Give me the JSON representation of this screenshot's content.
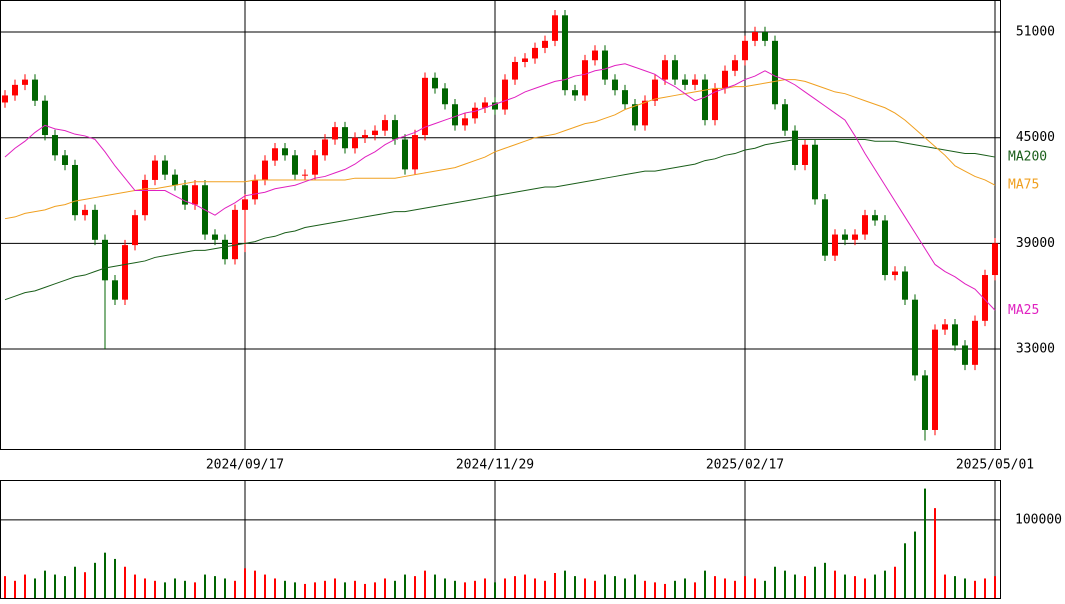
{
  "chart_data": {
    "type": "candlestick",
    "categories": [
      null,
      null,
      null,
      null,
      null,
      null,
      null,
      null,
      null,
      null,
      null,
      null,
      null,
      null,
      null,
      null,
      null,
      null,
      null,
      null,
      null,
      null,
      null,
      null,
      "2024/09/17",
      null,
      null,
      null,
      null,
      null,
      null,
      null,
      null,
      null,
      null,
      null,
      null,
      null,
      null,
      null,
      null,
      null,
      null,
      null,
      null,
      null,
      null,
      null,
      null,
      "2024/11/29",
      null,
      null,
      null,
      null,
      null,
      null,
      null,
      null,
      null,
      null,
      null,
      null,
      null,
      null,
      null,
      null,
      null,
      null,
      null,
      null,
      null,
      null,
      null,
      null,
      "2025/02/17",
      null,
      null,
      null,
      null,
      null,
      null,
      null,
      null,
      null,
      null,
      null,
      null,
      null,
      null,
      null,
      null,
      null,
      null,
      null,
      null,
      null,
      null,
      null,
      null,
      "2025/05/01"
    ],
    "open": [
      47000,
      47400,
      48000,
      48300,
      47100,
      45150,
      44000,
      43450,
      40600,
      40900,
      39200,
      36900,
      35800,
      38900,
      40600,
      42600,
      43700,
      42900,
      42300,
      41200,
      42300,
      39500,
      39200,
      38100,
      40900,
      41500,
      42600,
      43700,
      44400,
      44000,
      42900,
      42900,
      44000,
      44900,
      45600,
      44400,
      45000,
      45150,
      45400,
      46000,
      44900,
      43200,
      45150,
      48400,
      47800,
      46900,
      45700,
      46100,
      46700,
      47000,
      46600,
      48300,
      49300,
      49500,
      50100,
      50500,
      51950,
      47700,
      47400,
      49400,
      49950,
      48300,
      47700,
      46900,
      45700,
      47100,
      48300,
      49400,
      48300,
      48000,
      48300,
      46000,
      47800,
      48800,
      49400,
      50500,
      51000,
      50500,
      46900,
      45400,
      43450,
      44600,
      41500,
      38300,
      39500,
      39200,
      39500,
      40600,
      40300,
      37200,
      37400,
      35800,
      31500,
      28400,
      34100,
      34400,
      33200,
      32100,
      34600,
      37200
    ],
    "high": [
      47700,
      48300,
      48600,
      48600,
      47400,
      45450,
      44300,
      43750,
      41200,
      41200,
      39500,
      37200,
      39200,
      40900,
      42900,
      44000,
      44000,
      43200,
      42600,
      42600,
      42600,
      39800,
      39500,
      41200,
      41800,
      42900,
      44000,
      44700,
      44700,
      44300,
      43200,
      44300,
      45200,
      45900,
      45900,
      45300,
      45450,
      45700,
      46300,
      46300,
      45200,
      45450,
      48700,
      48700,
      48100,
      47200,
      46400,
      47000,
      47300,
      47300,
      48600,
      49600,
      49800,
      50400,
      50800,
      52250,
      52250,
      48000,
      49700,
      50250,
      50250,
      48600,
      48000,
      47200,
      47400,
      48600,
      49700,
      49700,
      48600,
      48600,
      48600,
      48100,
      49100,
      49700,
      50800,
      51300,
      51300,
      50800,
      47200,
      45700,
      44900,
      44900,
      41800,
      39800,
      39800,
      39800,
      40900,
      40900,
      40600,
      37700,
      37700,
      36100,
      31800,
      34400,
      34700,
      34700,
      33500,
      34900,
      37500,
      39300
    ],
    "low": [
      46700,
      47100,
      47700,
      46800,
      44850,
      43700,
      43150,
      40300,
      40300,
      38900,
      33000,
      35500,
      35500,
      38600,
      40300,
      42300,
      42600,
      42000,
      40900,
      40900,
      39200,
      38900,
      37800,
      37800,
      38500,
      41200,
      42300,
      43400,
      43700,
      42600,
      42600,
      42600,
      43700,
      44600,
      44100,
      44100,
      44700,
      44850,
      45100,
      44600,
      42900,
      42900,
      44850,
      47500,
      46600,
      45400,
      45400,
      45800,
      46400,
      46300,
      46300,
      48000,
      49000,
      49200,
      49800,
      50200,
      47400,
      47100,
      47100,
      49100,
      48000,
      47400,
      46600,
      45400,
      45400,
      46800,
      48000,
      48000,
      47700,
      47700,
      45700,
      45700,
      47500,
      48500,
      49100,
      50200,
      50200,
      46600,
      45100,
      43150,
      43150,
      41200,
      38000,
      38000,
      38900,
      38900,
      39200,
      40000,
      36900,
      36900,
      35500,
      31200,
      27800,
      28100,
      33800,
      32900,
      31800,
      31800,
      34300,
      36900
    ],
    "close": [
      47400,
      48000,
      48300,
      47100,
      45150,
      44000,
      43450,
      40600,
      40900,
      39200,
      36900,
      35800,
      38900,
      40600,
      42600,
      43700,
      42900,
      42300,
      41200,
      42300,
      39500,
      39200,
      38100,
      40900,
      41500,
      42600,
      43700,
      44400,
      44000,
      42900,
      42900,
      44000,
      44900,
      45600,
      44400,
      45000,
      45150,
      45400,
      46000,
      44900,
      43200,
      45150,
      48400,
      47800,
      46900,
      45700,
      46100,
      46700,
      47000,
      46600,
      48300,
      49300,
      49500,
      50100,
      50500,
      51950,
      47700,
      47400,
      49400,
      49950,
      48300,
      47700,
      46900,
      45700,
      47100,
      48300,
      49400,
      48300,
      48000,
      48300,
      46000,
      47800,
      48800,
      49400,
      50500,
      51000,
      50500,
      46900,
      45400,
      43450,
      44600,
      41500,
      38300,
      39500,
      39200,
      39500,
      40600,
      40300,
      37200,
      37400,
      35800,
      31500,
      28400,
      34100,
      34400,
      33200,
      32100,
      34600,
      37200,
      39000
    ],
    "up_color": "#ff0000",
    "down_color": "#006400",
    "ylim": [
      27320,
      52820
    ],
    "yticks": [
      33000,
      39000,
      45000,
      51000
    ],
    "series": [
      {
        "name": "MA200",
        "color": "#1a5e1a",
        "values": [
          35800,
          36000,
          36200,
          36300,
          36500,
          36700,
          36900,
          37100,
          37200,
          37400,
          37600,
          37700,
          37800,
          37900,
          38000,
          38200,
          38300,
          38400,
          38500,
          38600,
          38600,
          38700,
          38800,
          38900,
          39000,
          39100,
          39300,
          39400,
          39600,
          39700,
          39900,
          40000,
          40100,
          40200,
          40300,
          40400,
          40500,
          40600,
          40700,
          40800,
          40800,
          40900,
          41000,
          41100,
          41200,
          41300,
          41400,
          41500,
          41600,
          41700,
          41800,
          41900,
          42000,
          42100,
          42200,
          42200,
          42300,
          42400,
          42500,
          42600,
          42700,
          42800,
          42900,
          43000,
          43100,
          43100,
          43200,
          43300,
          43400,
          43500,
          43700,
          43800,
          44000,
          44100,
          44300,
          44400,
          44600,
          44700,
          44800,
          44900,
          44900,
          44900,
          44900,
          44900,
          44900,
          44900,
          44900,
          44800,
          44800,
          44800,
          44700,
          44600,
          44500,
          44400,
          44300,
          44200,
          44100,
          44100,
          44000,
          43900
        ]
      },
      {
        "name": "MA75",
        "color": "#f0a020",
        "values": [
          40400,
          40500,
          40700,
          40800,
          40900,
          41100,
          41200,
          41400,
          41500,
          41600,
          41700,
          41800,
          41900,
          42000,
          42100,
          42100,
          42200,
          42300,
          42400,
          42500,
          42500,
          42500,
          42500,
          42500,
          42500,
          42600,
          42600,
          42600,
          42600,
          42600,
          42600,
          42600,
          42600,
          42600,
          42600,
          42700,
          42700,
          42700,
          42700,
          42700,
          42800,
          42900,
          43000,
          43100,
          43200,
          43300,
          43500,
          43700,
          43900,
          44200,
          44400,
          44600,
          44800,
          45000,
          45100,
          45200,
          45400,
          45600,
          45800,
          45900,
          46100,
          46300,
          46600,
          46800,
          47000,
          47200,
          47300,
          47400,
          47500,
          47600,
          47700,
          47800,
          47800,
          47900,
          47900,
          48000,
          48100,
          48200,
          48300,
          48300,
          48200,
          48000,
          47800,
          47600,
          47500,
          47300,
          47100,
          46900,
          46700,
          46400,
          46000,
          45500,
          45000,
          44500,
          44000,
          43400,
          43100,
          42800,
          42600,
          42300
        ]
      },
      {
        "name": "MA25",
        "color": "#e020c0",
        "values": [
          43900,
          44400,
          44800,
          45300,
          45700,
          45500,
          45400,
          45200,
          45100,
          44900,
          44200,
          43400,
          42700,
          42000,
          42000,
          42000,
          42000,
          41700,
          41400,
          41200,
          40900,
          40600,
          41000,
          41300,
          41700,
          41800,
          41900,
          42100,
          42200,
          42300,
          42500,
          42700,
          42800,
          43000,
          43200,
          43500,
          43900,
          44200,
          44600,
          44900,
          45100,
          45300,
          45600,
          45800,
          46000,
          46200,
          46400,
          46500,
          46700,
          46900,
          47100,
          47300,
          47600,
          47800,
          48000,
          48200,
          48300,
          48500,
          48600,
          48800,
          48900,
          49100,
          49200,
          49000,
          48800,
          48600,
          48200,
          47900,
          47500,
          47100,
          47300,
          47600,
          47800,
          48000,
          48300,
          48500,
          48800,
          48500,
          48300,
          48000,
          47600,
          47200,
          46800,
          46400,
          46000,
          45100,
          44100,
          43200,
          42300,
          41400,
          40500,
          39600,
          38700,
          37800,
          37400,
          37100,
          36700,
          36400,
          35800,
          35200
        ]
      }
    ],
    "volume": {
      "values": [
        28000,
        22000,
        30000,
        25000,
        35000,
        30000,
        28000,
        40000,
        33000,
        45000,
        58000,
        50000,
        40000,
        30000,
        25000,
        22000,
        20000,
        25000,
        22000,
        20000,
        30000,
        28000,
        25000,
        22000,
        38000,
        35000,
        30000,
        25000,
        22000,
        20000,
        18000,
        20000,
        22000,
        25000,
        20000,
        22000,
        18000,
        20000,
        25000,
        22000,
        30000,
        28000,
        35000,
        30000,
        25000,
        22000,
        20000,
        22000,
        25000,
        20000,
        25000,
        28000,
        30000,
        25000,
        22000,
        32000,
        35000,
        28000,
        25000,
        22000,
        30000,
        28000,
        25000,
        30000,
        22000,
        20000,
        18000,
        22000,
        25000,
        20000,
        35000,
        28000,
        25000,
        22000,
        28000,
        25000,
        22000,
        40000,
        35000,
        30000,
        28000,
        40000,
        45000,
        35000,
        30000,
        28000,
        25000,
        30000,
        35000,
        40000,
        70000,
        85000,
        140000,
        115000,
        30000,
        28000,
        25000,
        22000,
        25000,
        28000
      ],
      "ylim": [
        0,
        151000
      ],
      "yticks": [
        100000
      ]
    }
  }
}
